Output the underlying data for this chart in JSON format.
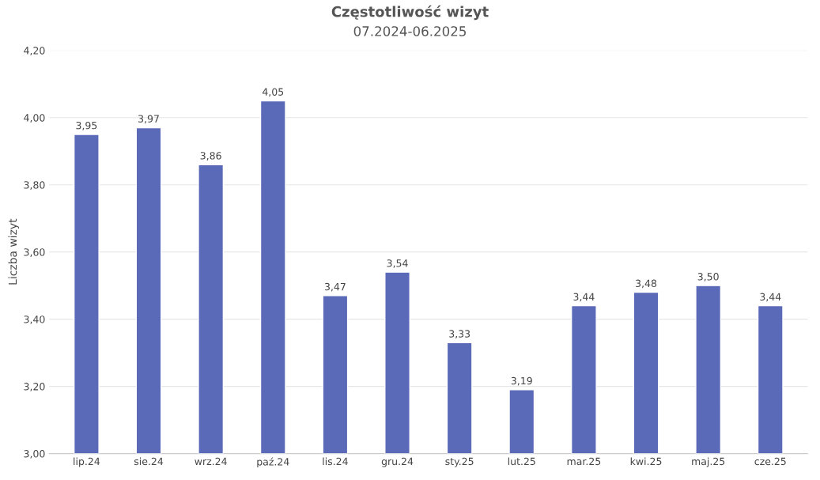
{
  "chart_data": {
    "type": "bar",
    "title": "Częstotliwość wizyt",
    "subtitle": "07.2024-06.2025",
    "ylabel": "Liczba wizyt",
    "categories": [
      "lip.24",
      "sie.24",
      "wrz.24",
      "paź.24",
      "lis.24",
      "gru.24",
      "sty.25",
      "lut.25",
      "mar.25",
      "kwi.25",
      "maj.25",
      "cze.25"
    ],
    "values": [
      3.95,
      3.97,
      3.86,
      4.05,
      3.47,
      3.54,
      3.33,
      3.19,
      3.44,
      3.48,
      3.5,
      3.44
    ],
    "value_labels": [
      "3,95",
      "3,97",
      "3,86",
      "4,05",
      "3,47",
      "3,54",
      "3,33",
      "3,19",
      "3,44",
      "3,48",
      "3,50",
      "3,44"
    ],
    "color": "#5b6ab8",
    "ylim": [
      3.0,
      4.2
    ],
    "yticks": [
      {
        "value": 3.0,
        "label": "3,00"
      },
      {
        "value": 3.2,
        "label": "3,20"
      },
      {
        "value": 3.4,
        "label": "3,40"
      },
      {
        "value": 3.6,
        "label": "3,60"
      },
      {
        "value": 3.8,
        "label": "3,80"
      },
      {
        "value": 4.0,
        "label": "4,00"
      },
      {
        "value": 4.2,
        "label": "4,20"
      }
    ],
    "grid": "y",
    "legend": false
  }
}
